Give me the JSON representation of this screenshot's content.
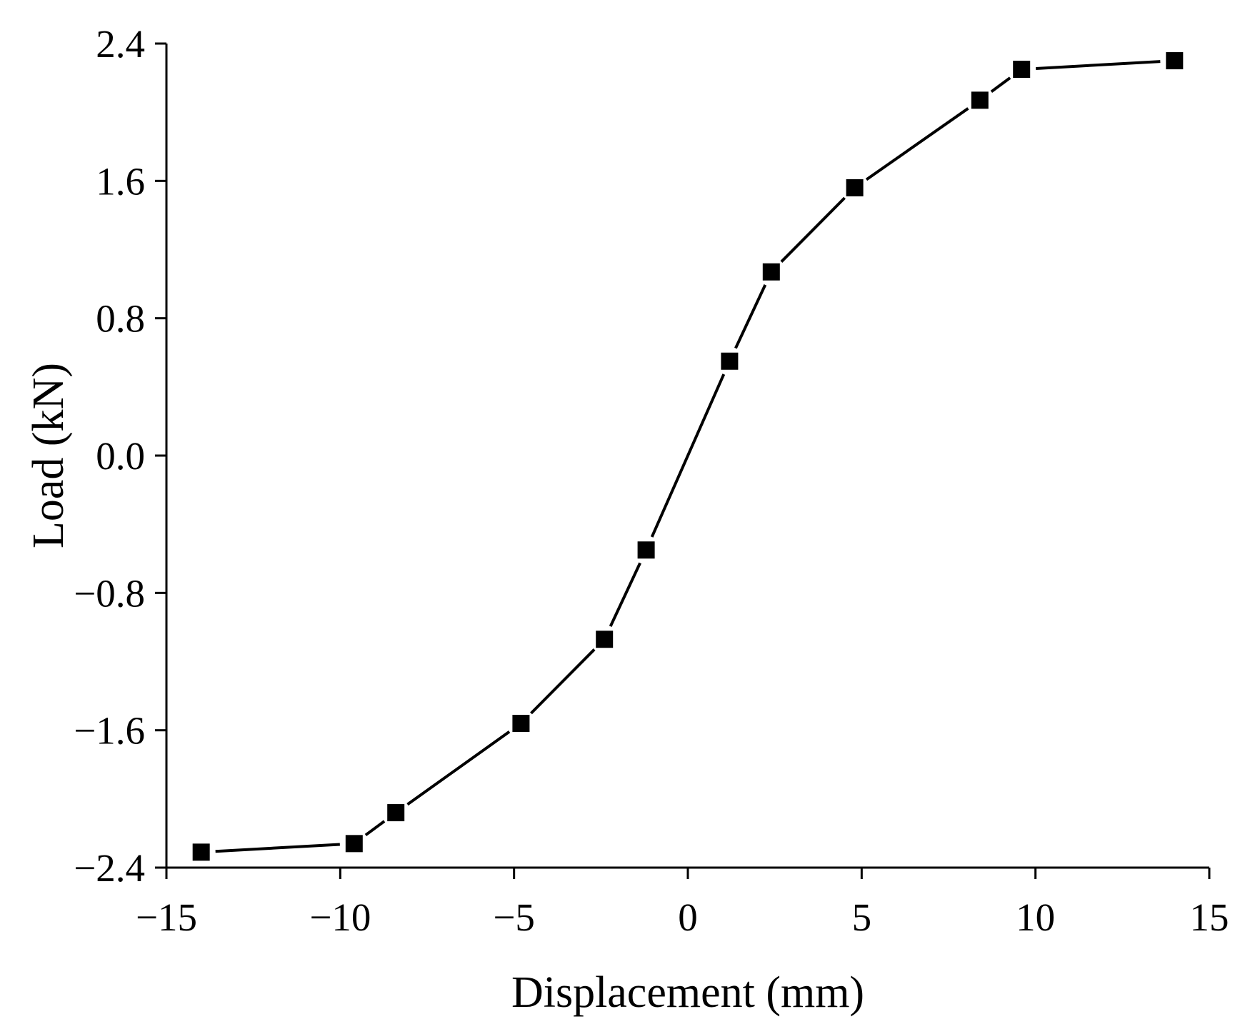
{
  "chart_data": {
    "type": "line",
    "title": "",
    "xlabel": "Displacement (mm)",
    "ylabel": "Load (kN)",
    "xlim": [
      -15,
      15
    ],
    "ylim": [
      -2.4,
      2.4
    ],
    "x_ticks": [
      {
        "value": -15,
        "label": "−15"
      },
      {
        "value": -10,
        "label": "−10"
      },
      {
        "value": -5,
        "label": "−5"
      },
      {
        "value": 0,
        "label": "0"
      },
      {
        "value": 5,
        "label": "5"
      },
      {
        "value": 10,
        "label": "10"
      },
      {
        "value": 15,
        "label": "15"
      }
    ],
    "y_ticks": [
      {
        "value": -2.4,
        "label": "−2.4"
      },
      {
        "value": -1.6,
        "label": "−1.6"
      },
      {
        "value": -0.8,
        "label": "−0.8"
      },
      {
        "value": 0.0,
        "label": "0.0"
      },
      {
        "value": 0.8,
        "label": "0.8"
      },
      {
        "value": 1.6,
        "label": "1.6"
      },
      {
        "value": 2.4,
        "label": "2.4"
      }
    ],
    "grid": false,
    "legend": "none",
    "marker": "square",
    "color": "#000000",
    "series": [
      {
        "x": [
          -14.0,
          -9.6,
          -8.4,
          -4.8,
          -2.4,
          -1.2,
          1.2,
          2.4,
          4.8,
          8.4,
          9.6,
          14.0
        ],
        "y": [
          -2.31,
          -2.26,
          -2.08,
          -1.56,
          -1.07,
          -0.55,
          0.55,
          1.07,
          1.56,
          2.07,
          2.25,
          2.3
        ]
      }
    ]
  }
}
